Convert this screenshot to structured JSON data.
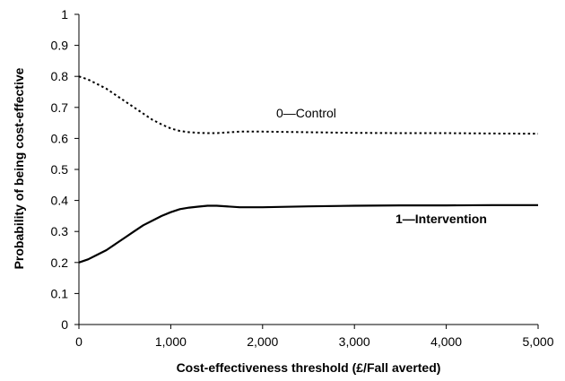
{
  "chart_data": {
    "type": "line",
    "xlabel": "Cost-effectiveness threshold (£/Fall averted)",
    "ylabel": "Probability of being cost-effective",
    "xlim": [
      0,
      5000
    ],
    "ylim": [
      0,
      1
    ],
    "x_ticks": [
      0,
      1000,
      2000,
      3000,
      4000,
      5000
    ],
    "x_tick_labels": [
      "0",
      "1,000",
      "2,000",
      "3,000",
      "4,000",
      "5,000"
    ],
    "y_ticks": [
      0,
      0.1,
      0.2,
      0.3,
      0.4,
      0.5,
      0.6,
      0.7,
      0.8,
      0.9,
      1
    ],
    "y_tick_labels": [
      "0",
      "0.1",
      "0.2",
      "0.3",
      "0.4",
      "0.5",
      "0.6",
      "0.7",
      "0.8",
      "0.9",
      "1"
    ],
    "grid": false,
    "series": [
      {
        "name": "0—Control",
        "style": "dotted",
        "color": "#000000",
        "x": [
          0,
          100,
          200,
          300,
          400,
          500,
          600,
          700,
          800,
          900,
          1000,
          1100,
          1200,
          1300,
          1400,
          1500,
          1750,
          2000,
          2500,
          3000,
          3500,
          4000,
          4500,
          5000
        ],
        "y": [
          0.8,
          0.79,
          0.775,
          0.76,
          0.74,
          0.72,
          0.7,
          0.68,
          0.66,
          0.645,
          0.632,
          0.624,
          0.62,
          0.618,
          0.617,
          0.617,
          0.622,
          0.622,
          0.62,
          0.618,
          0.617,
          0.617,
          0.616,
          0.615
        ]
      },
      {
        "name": "1—Intervention",
        "style": "solid",
        "color": "#000000",
        "x": [
          0,
          100,
          200,
          300,
          400,
          500,
          600,
          700,
          800,
          900,
          1000,
          1100,
          1200,
          1300,
          1400,
          1500,
          1750,
          2000,
          2500,
          3000,
          3500,
          4000,
          4500,
          5000
        ],
        "y": [
          0.2,
          0.21,
          0.225,
          0.24,
          0.26,
          0.28,
          0.3,
          0.32,
          0.335,
          0.35,
          0.362,
          0.372,
          0.377,
          0.38,
          0.383,
          0.383,
          0.378,
          0.378,
          0.381,
          0.383,
          0.384,
          0.384,
          0.385,
          0.385
        ]
      }
    ]
  }
}
